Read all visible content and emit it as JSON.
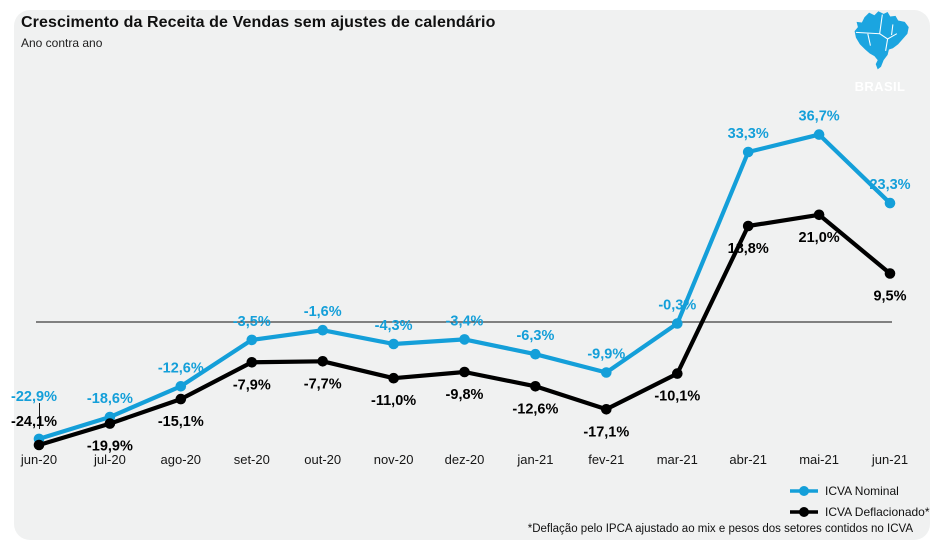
{
  "header": {
    "region_badge": "BRASIL",
    "map_icon": "brazil-map-icon"
  },
  "colors": {
    "accent_blue": "#1ba5e0",
    "line_blue": "#149fd9",
    "series_black": "#000000",
    "panel_bg": "#f0f1f1",
    "zero_line": "#3c3c3c"
  },
  "chart_data": {
    "type": "line",
    "title": "Crescimento da Receita de Vendas sem ajustes de calendário",
    "subtitle": "Ano contra ano",
    "categories": [
      "jun-20",
      "jul-20",
      "ago-20",
      "set-20",
      "out-20",
      "nov-20",
      "dez-20",
      "jan-21",
      "fev-21",
      "mar-21",
      "abr-21",
      "mai-21",
      "jun-21"
    ],
    "series": [
      {
        "name": "ICVA Nominal",
        "color": "#149fd9",
        "values": [
          -22.9,
          -18.6,
          -12.6,
          -3.5,
          -1.6,
          -4.3,
          -3.4,
          -6.3,
          -9.9,
          -0.3,
          33.3,
          36.7,
          23.3
        ],
        "labels": [
          "-22,9%",
          "-18,6%",
          "-12,6%",
          "-3,5%",
          "-1,6%",
          "-4,3%",
          "-3,4%",
          "-6,3%",
          "-9,9%",
          "-0,3%",
          "33,3%",
          "36,7%",
          "23,3%"
        ]
      },
      {
        "name": "ICVA Deflacionado*",
        "color": "#000000",
        "values": [
          -24.1,
          -19.9,
          -15.1,
          -7.9,
          -7.7,
          -11.0,
          -9.8,
          -12.6,
          -17.1,
          -10.1,
          18.8,
          21.0,
          9.5
        ],
        "labels": [
          "-24,1%",
          "-19,9%",
          "-15,1%",
          "-7,9%",
          "-7,7%",
          "-11,0%",
          "-9,8%",
          "-12,6%",
          "-17,1%",
          "-10,1%",
          "18,8%",
          "21,0%",
          "9,5%"
        ]
      }
    ],
    "baseline": 0,
    "ylim": [
      -30,
      42
    ],
    "grid": "zero-line-only",
    "legend_position": "bottom-right"
  },
  "footnote": "*Deflação pelo IPCA ajustado ao mix e pesos dos setores contidos no ICVA"
}
